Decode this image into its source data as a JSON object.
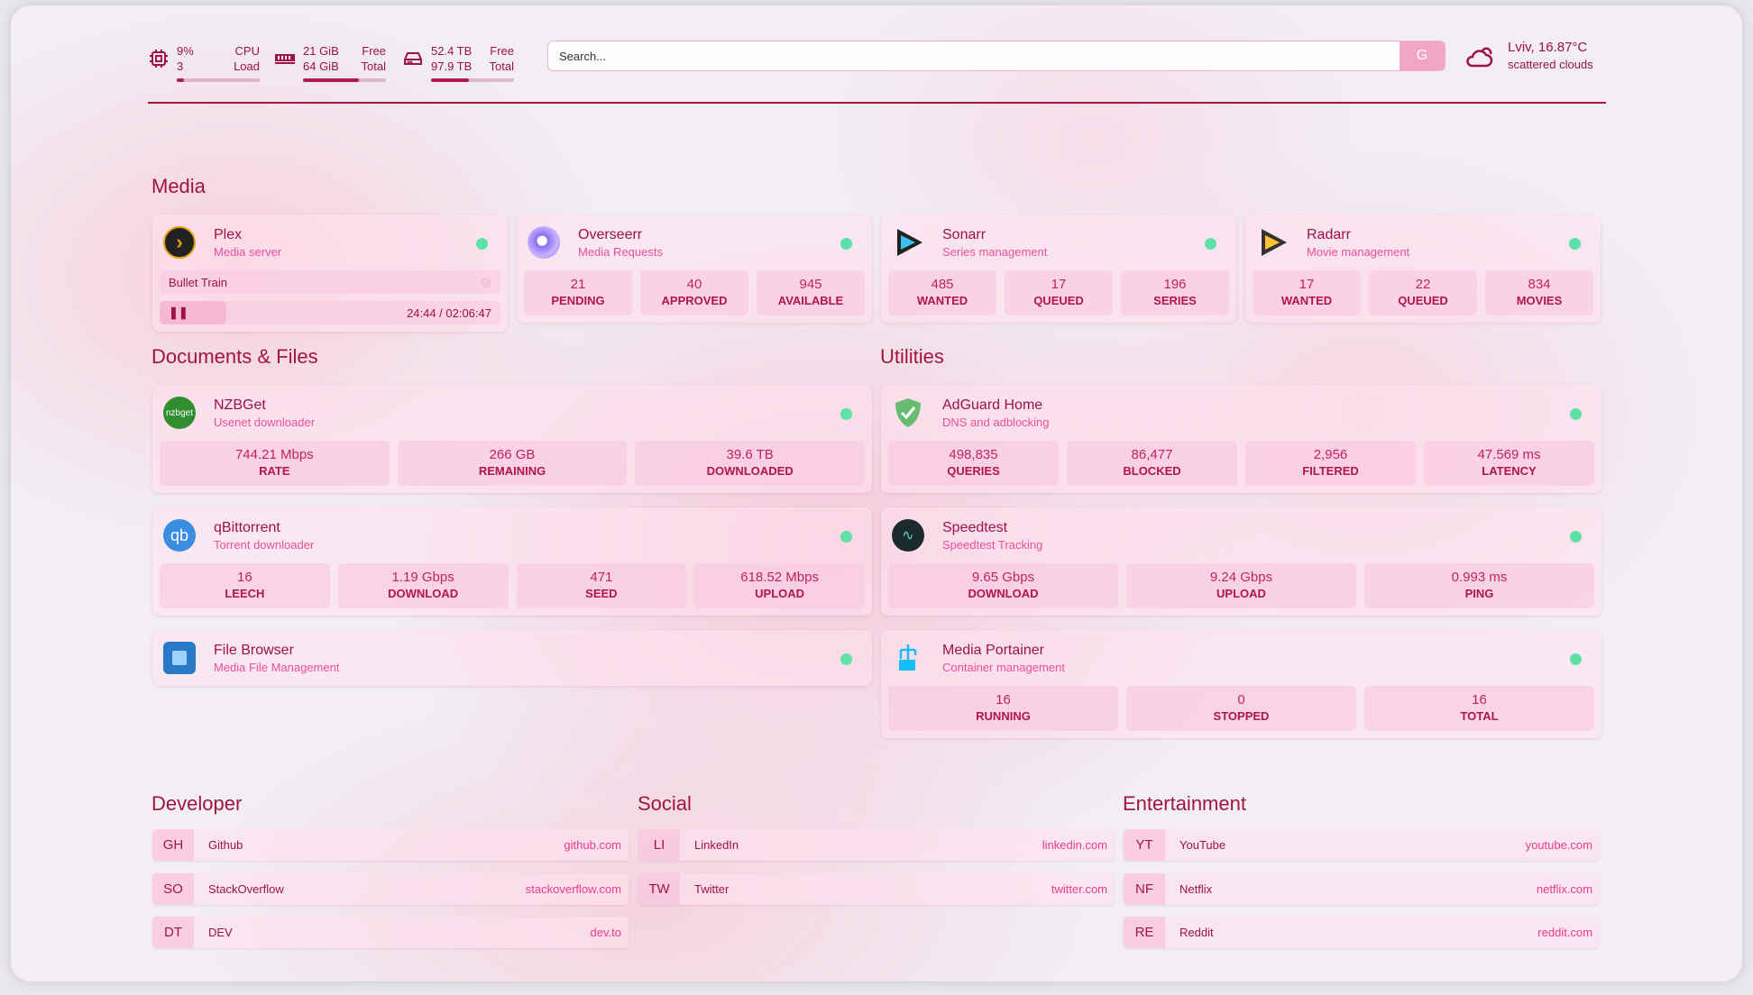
{
  "header": {
    "cpu": {
      "value": "9%",
      "label": "CPU",
      "sub_value": "3",
      "sub_label": "Load",
      "percent": 9,
      "icon": "cpu-icon"
    },
    "memory": {
      "value": "21 GiB",
      "label": "Free",
      "sub_value": "64 GiB",
      "sub_label": "Total",
      "percent": 67,
      "icon": "memory-icon"
    },
    "disk": {
      "value": "52.4 TB",
      "label": "Free",
      "sub_value": "97.9 TB",
      "sub_label": "Total",
      "percent": 46,
      "icon": "disk-icon"
    },
    "search": {
      "placeholder": "Search...",
      "button": "G"
    },
    "weather": {
      "location_temp": "Lviv, 16.87°C",
      "condition": "scattered clouds",
      "icon": "cloud-sun-icon"
    }
  },
  "colors": {
    "accent": "#a3153f",
    "status_online": "#5fe0a7",
    "stat_bg": "#f9cde2"
  },
  "sections": {
    "media": "Media",
    "docs": "Documents & Files",
    "utilities": "Utilities",
    "developer": "Developer",
    "social": "Social",
    "entertainment": "Entertainment"
  },
  "services": {
    "plex": {
      "name": "Plex",
      "desc": "Media server",
      "icon": "plex-icon",
      "now_playing": {
        "title": "Bullet Train",
        "time": "24:44 / 02:06:47",
        "progress": 19.5
      }
    },
    "overseerr": {
      "name": "Overseerr",
      "desc": "Media Requests",
      "icon": "overseerr-icon",
      "stats": [
        {
          "v": "21",
          "l": "PENDING"
        },
        {
          "v": "40",
          "l": "APPROVED"
        },
        {
          "v": "945",
          "l": "AVAILABLE"
        }
      ]
    },
    "sonarr": {
      "name": "Sonarr",
      "desc": "Series management",
      "icon": "sonarr-icon",
      "stats": [
        {
          "v": "485",
          "l": "WANTED"
        },
        {
          "v": "17",
          "l": "QUEUED"
        },
        {
          "v": "196",
          "l": "SERIES"
        }
      ]
    },
    "radarr": {
      "name": "Radarr",
      "desc": "Movie management",
      "icon": "radarr-icon",
      "stats": [
        {
          "v": "17",
          "l": "WANTED"
        },
        {
          "v": "22",
          "l": "QUEUED"
        },
        {
          "v": "834",
          "l": "MOVIES"
        }
      ]
    },
    "nzbget": {
      "name": "NZBGet",
      "desc": "Usenet downloader",
      "icon": "nzbget-icon",
      "icon_text": "nzbget",
      "stats": [
        {
          "v": "744.21 Mbps",
          "l": "RATE"
        },
        {
          "v": "266 GB",
          "l": "REMAINING"
        },
        {
          "v": "39.6 TB",
          "l": "DOWNLOADED"
        }
      ]
    },
    "qbittorrent": {
      "name": "qBittorrent",
      "desc": "Torrent downloader",
      "icon": "qbittorrent-icon",
      "icon_text": "qb",
      "stats": [
        {
          "v": "16",
          "l": "LEECH"
        },
        {
          "v": "1.19 Gbps",
          "l": "DOWNLOAD"
        },
        {
          "v": "471",
          "l": "SEED"
        },
        {
          "v": "618.52 Mbps",
          "l": "UPLOAD"
        }
      ]
    },
    "filebrowser": {
      "name": "File Browser",
      "desc": "Media File Management",
      "icon": "file-browser-icon"
    },
    "adguard": {
      "name": "AdGuard Home",
      "desc": "DNS and adblocking",
      "icon": "adguard-shield-icon",
      "stats": [
        {
          "v": "498,835",
          "l": "QUERIES"
        },
        {
          "v": "86,477",
          "l": "BLOCKED"
        },
        {
          "v": "2,956",
          "l": "FILTERED"
        },
        {
          "v": "47.569 ms",
          "l": "LATENCY"
        }
      ]
    },
    "speedtest": {
      "name": "Speedtest",
      "desc": "Speedtest Tracking",
      "icon": "speedtest-icon",
      "stats": [
        {
          "v": "9.65 Gbps",
          "l": "DOWNLOAD"
        },
        {
          "v": "9.24 Gbps",
          "l": "UPLOAD"
        },
        {
          "v": "0.993 ms",
          "l": "PING"
        }
      ]
    },
    "portainer": {
      "name": "Media Portainer",
      "desc": "Container management",
      "icon": "portainer-icon",
      "stats": [
        {
          "v": "16",
          "l": "RUNNING"
        },
        {
          "v": "0",
          "l": "STOPPED"
        },
        {
          "v": "16",
          "l": "TOTAL"
        }
      ]
    }
  },
  "bookmarks": {
    "developer": [
      {
        "abbr": "GH",
        "name": "Github",
        "url": "github.com"
      },
      {
        "abbr": "SO",
        "name": "StackOverflow",
        "url": "stackoverflow.com"
      },
      {
        "abbr": "DT",
        "name": "DEV",
        "url": "dev.to"
      }
    ],
    "social": [
      {
        "abbr": "LI",
        "name": "LinkedIn",
        "url": "linkedin.com"
      },
      {
        "abbr": "TW",
        "name": "Twitter",
        "url": "twitter.com"
      }
    ],
    "entertainment": [
      {
        "abbr": "YT",
        "name": "YouTube",
        "url": "youtube.com"
      },
      {
        "abbr": "NF",
        "name": "Netflix",
        "url": "netflix.com"
      },
      {
        "abbr": "RE",
        "name": "Reddit",
        "url": "reddit.com"
      }
    ]
  }
}
